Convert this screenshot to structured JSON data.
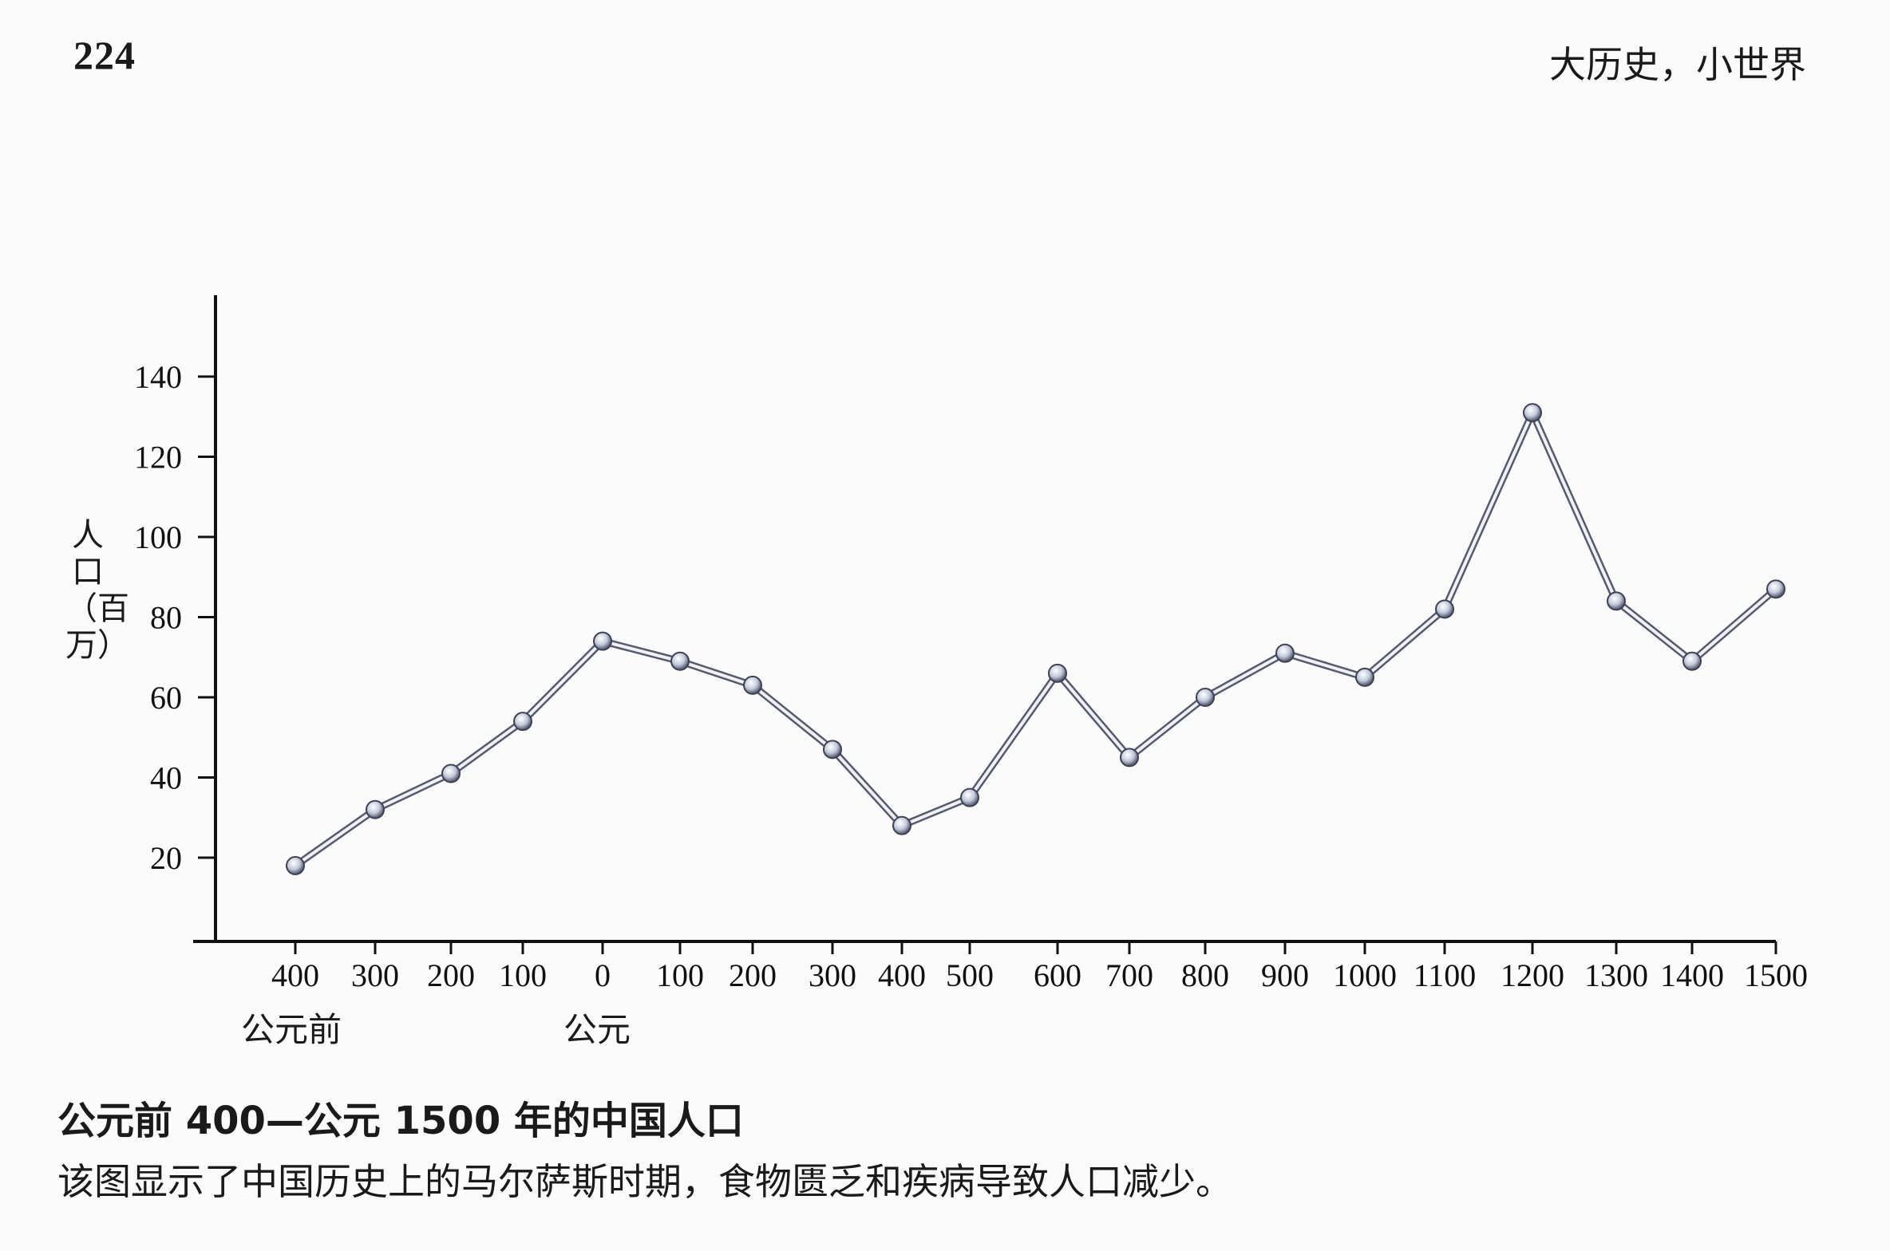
{
  "header": {
    "page_number": "224",
    "running_head": "大历史，小世界"
  },
  "chart_data": {
    "type": "line",
    "title": "",
    "xlabel": "",
    "ylabel": "人口（百万）",
    "x_tick_labels": [
      "400",
      "300",
      "200",
      "100",
      "0",
      "100",
      "200",
      "300",
      "400",
      "500",
      "600",
      "700",
      "800",
      "900",
      "1000",
      "1100",
      "1200",
      "1300",
      "1400",
      "1500"
    ],
    "x_era_labels": {
      "bce": "公元前",
      "ce": "公元"
    },
    "y_ticks": [
      20,
      40,
      60,
      80,
      100,
      120,
      140
    ],
    "ylim": [
      0,
      160
    ],
    "xlim": [
      -500,
      1500
    ],
    "grid": false,
    "series": [
      {
        "x": [
          -400,
          -300,
          -220,
          -100,
          0,
          100,
          200,
          300,
          400,
          500,
          600,
          700,
          800,
          900,
          1000,
          1100,
          1200,
          1300,
          1400,
          1500
        ],
        "values": [
          18,
          32,
          41,
          54,
          74,
          69,
          63,
          47,
          28,
          35,
          66,
          45,
          60,
          71,
          65,
          82,
          131,
          84,
          69,
          87
        ],
        "color": "#8c8fa6",
        "marker_color": "#a9b3c7"
      }
    ]
  },
  "caption": {
    "title": "公元前 400—公元 1500 年的中国人口",
    "text": "该图显示了中国历史上的马尔萨斯时期，食物匮乏和疾病导致人口减少。"
  }
}
